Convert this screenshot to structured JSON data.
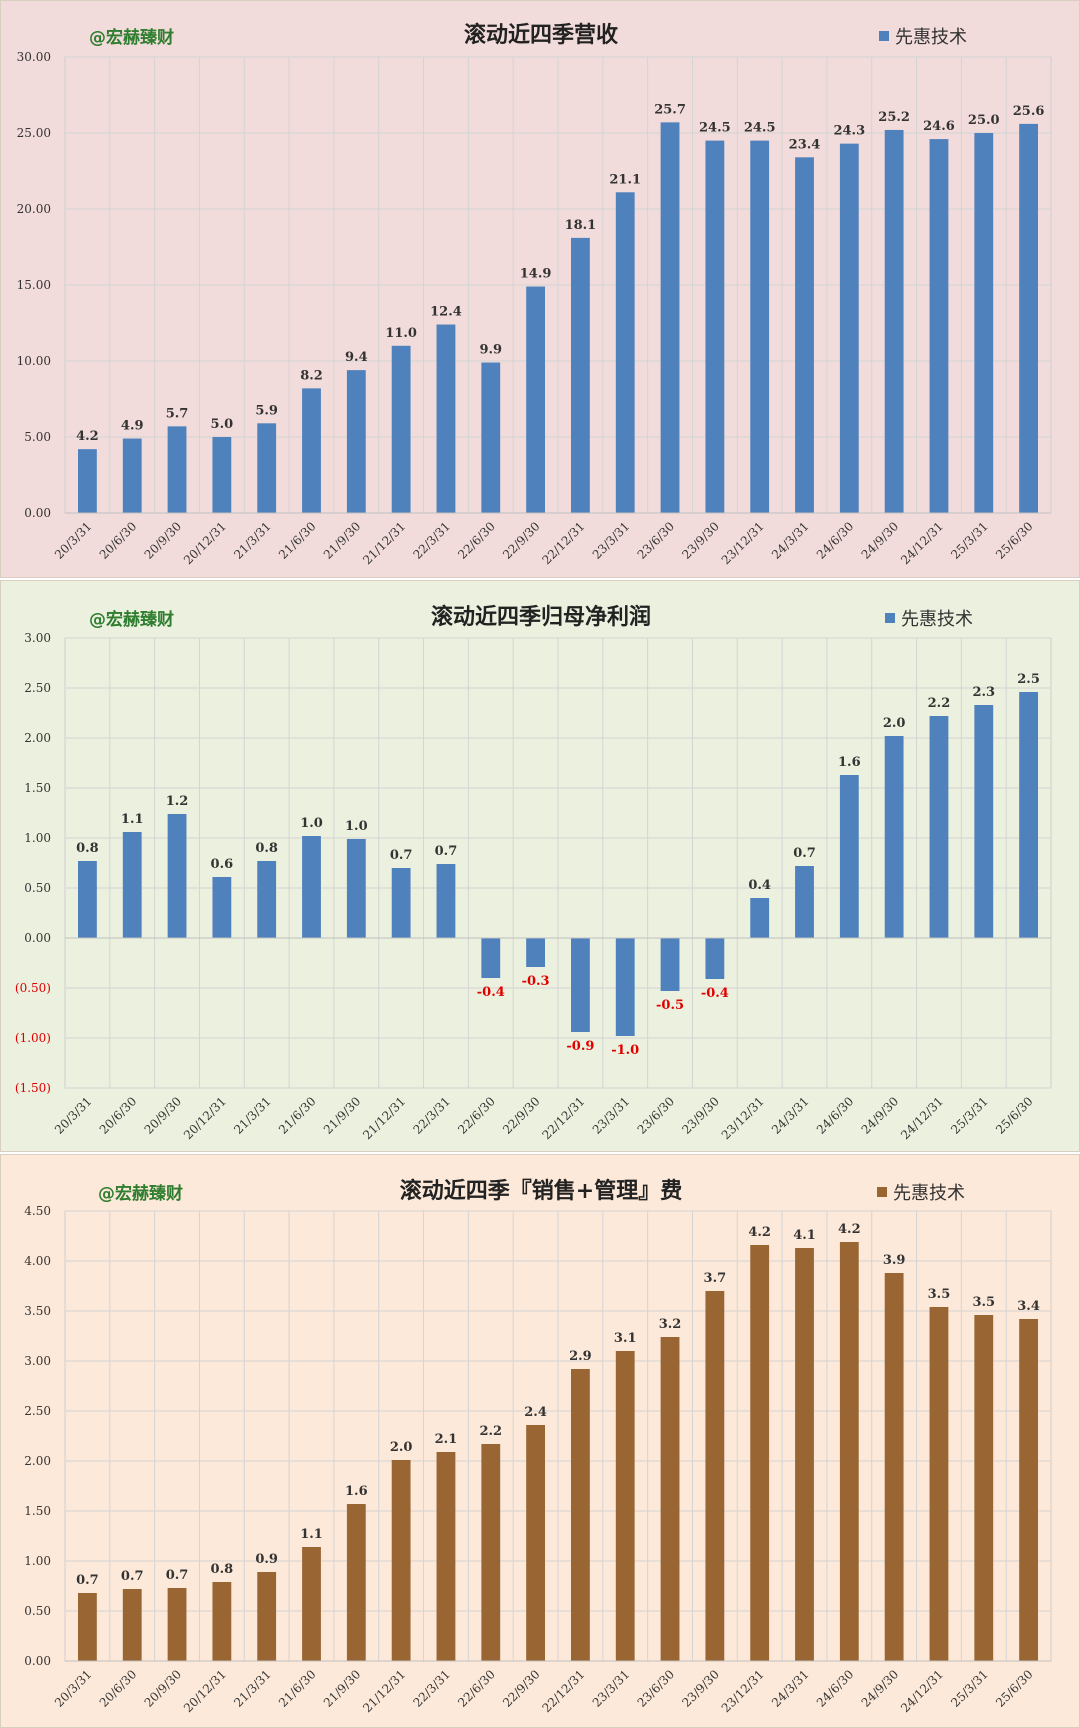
{
  "watermark": "@宏赫臻财",
  "charts": [
    {
      "title": "滚动近四季营收",
      "legend": "先惠技术",
      "bg": "#f2dcdb",
      "color": "#4f81bd",
      "ylim": [
        0,
        30
      ],
      "yticks": [
        "0.00",
        "5.00",
        "10.00",
        "15.00",
        "20.00",
        "25.00",
        "30.00"
      ],
      "ytick_values": [
        0,
        5,
        10,
        15,
        20,
        25,
        30
      ]
    },
    {
      "title": "滚动近四季归母净利润",
      "legend": "先惠技术",
      "bg": "#ebf1de",
      "color": "#4f81bd",
      "ylim": [
        -1.5,
        3
      ],
      "yticks": [
        "(1.50)",
        "(1.00)",
        "(0.50)",
        "0.00",
        "0.50",
        "1.00",
        "1.50",
        "2.00",
        "2.50",
        "3.00"
      ],
      "ytick_values": [
        -1.5,
        -1,
        -0.5,
        0,
        0.5,
        1,
        1.5,
        2,
        2.5,
        3
      ]
    },
    {
      "title": "滚动近四季『销售+管理』费",
      "legend": "先惠技术",
      "bg": "#fde9d9",
      "color": "#996633",
      "ylim": [
        0,
        4.5
      ],
      "yticks": [
        "0.00",
        "0.50",
        "1.00",
        "1.50",
        "2.00",
        "2.50",
        "3.00",
        "3.50",
        "4.00",
        "4.50"
      ],
      "ytick_values": [
        0,
        0.5,
        1,
        1.5,
        2,
        2.5,
        3,
        3.5,
        4,
        4.5
      ]
    }
  ],
  "chart_data": [
    {
      "type": "bar",
      "title": "滚动近四季营收",
      "categories": [
        "20/3/31",
        "20/6/30",
        "20/9/30",
        "20/12/31",
        "21/3/31",
        "21/6/30",
        "21/9/30",
        "21/12/31",
        "22/3/31",
        "22/6/30",
        "22/9/30",
        "22/12/31",
        "23/3/31",
        "23/6/30",
        "23/9/30",
        "23/12/31",
        "24/3/31",
        "24/6/30",
        "24/9/30",
        "24/12/31",
        "25/3/31",
        "25/6/30"
      ],
      "series": [
        {
          "name": "先惠技术",
          "values": [
            4.2,
            4.9,
            5.7,
            5.0,
            5.9,
            8.2,
            9.4,
            11.0,
            12.4,
            9.9,
            14.9,
            18.1,
            21.1,
            25.7,
            24.5,
            24.5,
            23.4,
            24.3,
            25.2,
            24.6,
            25.0,
            25.6
          ]
        }
      ],
      "labels": [
        "4.2",
        "4.9",
        "5.7",
        "5.0",
        "5.9",
        "8.2",
        "9.4",
        "11.0",
        "12.4",
        "9.9",
        "14.9",
        "18.1",
        "21.1",
        "25.7",
        "24.5",
        "24.5",
        "23.4",
        "24.3",
        "25.2",
        "24.6",
        "25.0",
        "25.6"
      ],
      "ylim": [
        0,
        30
      ],
      "grid": true,
      "legend": "top-right"
    },
    {
      "type": "bar",
      "title": "滚动近四季归母净利润",
      "categories": [
        "20/3/31",
        "20/6/30",
        "20/9/30",
        "20/12/31",
        "21/3/31",
        "21/6/30",
        "21/9/30",
        "21/12/31",
        "22/3/31",
        "22/6/30",
        "22/9/30",
        "22/12/31",
        "23/3/31",
        "23/6/30",
        "23/9/30",
        "23/12/31",
        "24/3/31",
        "24/6/30",
        "24/9/30",
        "24/12/31",
        "25/3/31",
        "25/6/30"
      ],
      "series": [
        {
          "name": "先惠技术",
          "values": [
            0.77,
            1.06,
            1.24,
            0.61,
            0.77,
            1.02,
            0.99,
            0.7,
            0.74,
            -0.4,
            -0.29,
            -0.94,
            -0.98,
            -0.53,
            -0.41,
            0.4,
            0.72,
            1.63,
            2.02,
            2.22,
            2.33,
            2.46
          ]
        }
      ],
      "labels": [
        "0.8",
        "1.1",
        "1.2",
        "0.6",
        "0.8",
        "1.0",
        "1.0",
        "0.7",
        "0.7",
        "-0.4",
        "-0.3",
        "-0.9",
        "-1.0",
        "-0.5",
        "-0.4",
        "0.4",
        "0.7",
        "1.6",
        "2.0",
        "2.2",
        "2.3",
        "2.5"
      ],
      "ylim": [
        -1.5,
        3
      ],
      "grid": true,
      "legend": "top-right"
    },
    {
      "type": "bar",
      "title": "滚动近四季『销售+管理』费",
      "categories": [
        "20/3/31",
        "20/6/30",
        "20/9/30",
        "20/12/31",
        "21/3/31",
        "21/6/30",
        "21/9/30",
        "21/12/31",
        "22/3/31",
        "22/6/30",
        "22/9/30",
        "22/12/31",
        "23/3/31",
        "23/6/30",
        "23/9/30",
        "23/12/31",
        "24/3/31",
        "24/6/30",
        "24/9/30",
        "24/12/31",
        "25/3/31",
        "25/6/30"
      ],
      "series": [
        {
          "name": "先惠技术",
          "values": [
            0.68,
            0.72,
            0.73,
            0.79,
            0.89,
            1.14,
            1.57,
            2.01,
            2.09,
            2.17,
            2.36,
            2.92,
            3.1,
            3.24,
            3.7,
            4.16,
            4.13,
            4.19,
            3.88,
            3.54,
            3.46,
            3.42
          ]
        }
      ],
      "labels": [
        "0.7",
        "0.7",
        "0.7",
        "0.8",
        "0.9",
        "1.1",
        "1.6",
        "2.0",
        "2.1",
        "2.2",
        "2.4",
        "2.9",
        "3.1",
        "3.2",
        "3.7",
        "4.2",
        "4.1",
        "4.2",
        "3.9",
        "3.5",
        "3.5",
        "3.4"
      ],
      "ylim": [
        0,
        4.5
      ],
      "grid": true,
      "legend": "top-right"
    }
  ]
}
